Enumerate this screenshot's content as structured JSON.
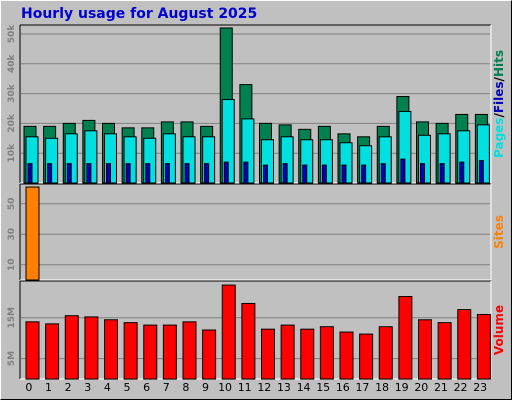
{
  "chart_data": {
    "title": "Hourly usage for August 2025",
    "type": "bar",
    "categories": [
      "0",
      "1",
      "2",
      "3",
      "4",
      "5",
      "6",
      "7",
      "8",
      "9",
      "10",
      "11",
      "12",
      "13",
      "14",
      "15",
      "16",
      "17",
      "18",
      "19",
      "20",
      "21",
      "22",
      "23"
    ],
    "grid": true,
    "panels": [
      {
        "id": "hits",
        "ylim": [
          0,
          53000
        ],
        "yticks": [
          "10k",
          "20k",
          "30k",
          "40k",
          "50k"
        ],
        "ytick_values": [
          10000,
          20000,
          30000,
          40000,
          50000
        ],
        "legend": {
          "parts": [
            "Pages",
            "/",
            "Files",
            "/",
            "Hits"
          ],
          "colors": [
            "#00e0e0",
            "#000000",
            "#0000c0",
            "#000000",
            "#008050"
          ]
        },
        "series": [
          {
            "name": "Hits",
            "color": "#008050",
            "values": [
              19000,
              19000,
              20000,
              21000,
              20000,
              18500,
              18500,
              20500,
              20500,
              19000,
              52000,
              33000,
              20000,
              19500,
              18000,
              19000,
              16500,
              15500,
              19000,
              29000,
              20500,
              20000,
              23000,
              23000
            ]
          },
          {
            "name": "Files",
            "color": "#00e0e0",
            "values": [
              15500,
              15000,
              16500,
              17500,
              16500,
              15500,
              15000,
              16500,
              15500,
              15500,
              28000,
              21500,
              14500,
              15500,
              14500,
              14500,
              13500,
              12500,
              15500,
              24000,
              16000,
              16500,
              17500,
              19500
            ]
          },
          {
            "name": "Pages",
            "color": "#0000c0",
            "values": [
              6500,
              6500,
              6500,
              6500,
              6500,
              6500,
              6500,
              6500,
              6500,
              6500,
              7000,
              7000,
              6000,
              6500,
              6000,
              6000,
              6000,
              6000,
              6500,
              8000,
              6500,
              6500,
              7000,
              7500
            ]
          }
        ]
      },
      {
        "id": "sites",
        "ylim": [
          0,
          63
        ],
        "yticks": [
          "10",
          "30",
          "50"
        ],
        "ytick_values": [
          10,
          30,
          50
        ],
        "legend": {
          "parts": [
            "Sites"
          ],
          "colors": [
            "#ff8000"
          ]
        },
        "series": [
          {
            "name": "Sites",
            "color": "#ff8000",
            "values": [
              61,
              0,
              0,
              0,
              0,
              0,
              0,
              0,
              0,
              0,
              0,
              0,
              0,
              0,
              0,
              0,
              0,
              0,
              0,
              0,
              0,
              0,
              0,
              0
            ]
          }
        ]
      },
      {
        "id": "volume",
        "ylim": [
          0,
          24000000
        ],
        "yticks": [
          "5M",
          "15M"
        ],
        "ytick_values": [
          5000000,
          15000000
        ],
        "legend": {
          "parts": [
            "Volume"
          ],
          "colors": [
            "#ff0000"
          ]
        },
        "series": [
          {
            "name": "Volume",
            "color": "#ff0000",
            "values": [
              14000000,
              13500000,
              15500000,
              15200000,
              14500000,
              13800000,
              13200000,
              13200000,
              14000000,
              12000000,
              23000000,
              18500000,
              12200000,
              13200000,
              12200000,
              12800000,
              11500000,
              11000000,
              12800000,
              20200000,
              14500000,
              13800000,
              17000000,
              15800000
            ]
          }
        ]
      }
    ]
  }
}
